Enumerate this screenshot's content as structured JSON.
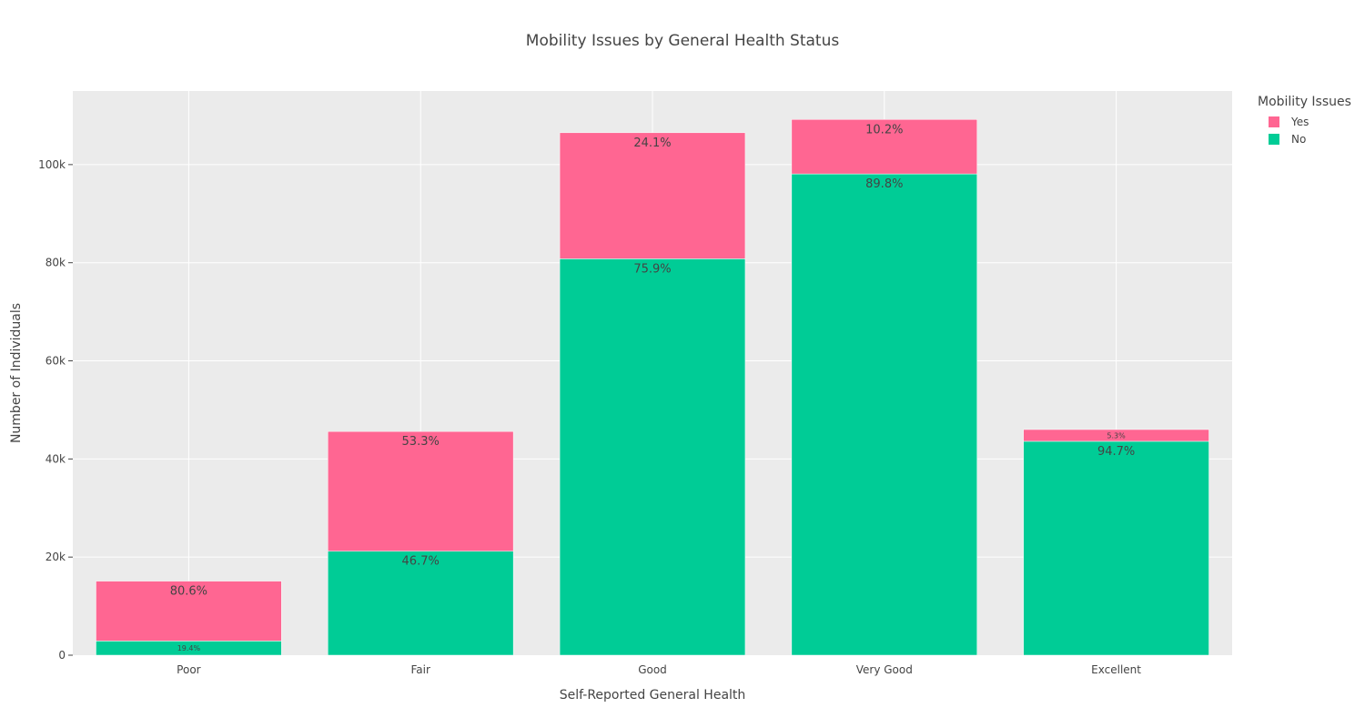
{
  "chart_data": {
    "type": "bar",
    "barmode": "stack",
    "title": "Mobility Issues by General Health Status",
    "xlabel": "Self-Reported General Health",
    "ylabel": "Number of Individuals",
    "categories": [
      "Poor",
      "Fair",
      "Good",
      "Very Good",
      "Excellent"
    ],
    "series": [
      {
        "name": "No",
        "color": "#00cc96",
        "values": [
          2900,
          21200,
          80800,
          98100,
          43600
        ],
        "labels": [
          "19.4%",
          "46.7%",
          "75.9%",
          "89.8%",
          "94.7%"
        ]
      },
      {
        "name": "Yes",
        "color": "#ff6692",
        "values": [
          12200,
          24400,
          25700,
          11100,
          2400
        ],
        "labels": [
          "80.6%",
          "53.3%",
          "24.1%",
          "10.2%",
          "5.3%"
        ]
      }
    ],
    "ylim": [
      0,
      115000
    ],
    "yticks": [
      0,
      20000,
      40000,
      60000,
      80000,
      100000
    ],
    "ytick_labels": [
      "0",
      "20k",
      "40k",
      "60k",
      "80k",
      "100k"
    ],
    "legend": {
      "title": "Mobility Issues",
      "items": [
        {
          "name": "Yes",
          "color": "#ff6692"
        },
        {
          "name": "No",
          "color": "#00cc96"
        }
      ],
      "placement": "top-right"
    },
    "grid": true,
    "plot_bgcolor": "#ebebeb"
  }
}
